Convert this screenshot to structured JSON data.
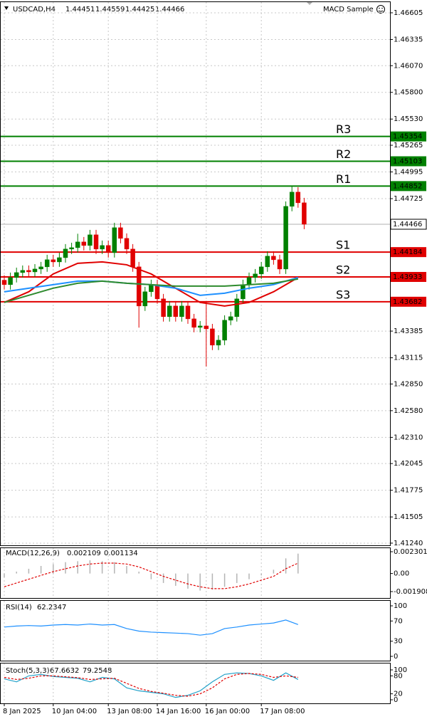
{
  "chart_data": [
    {
      "type": "candlestick",
      "title": "USDCAD,H4",
      "header_values": [
        1.44451,
        1.44559,
        1.44425,
        1.44466
      ],
      "indicator": "MACD Sample",
      "open": [
        1.439,
        1.43855,
        1.43927,
        1.43977,
        1.43999,
        1.43984,
        1.44013,
        1.44035,
        1.44107,
        1.44085,
        1.44128,
        1.44215,
        1.44229,
        1.44287,
        1.44251,
        1.44359,
        1.44215,
        1.44251,
        1.44179,
        1.44431,
        1.44323,
        1.44215,
        1.44035,
        1.43639,
        1.43783,
        1.43855,
        1.43711,
        1.43531,
        1.43639,
        1.43531,
        1.43639,
        1.43509,
        1.43423,
        1.43437,
        1.43408,
        1.43243,
        1.43293,
        1.43495,
        1.43531,
        1.43711,
        1.43855,
        1.43927,
        1.43963,
        1.44035,
        1.44143,
        1.44107,
        1.44013,
        1.44647,
        1.44791,
        1.44683
      ],
      "high": [
        1.4395,
        1.43977,
        1.44027,
        1.44049,
        1.44049,
        1.44063,
        1.44085,
        1.44157,
        1.44157,
        1.44178,
        1.44265,
        1.44279,
        1.4437,
        1.44337,
        1.44409,
        1.44409,
        1.44301,
        1.44301,
        1.44481,
        1.44481,
        1.44373,
        1.44265,
        1.44085,
        1.43833,
        1.43905,
        1.43905,
        1.43761,
        1.43689,
        1.43689,
        1.43689,
        1.43689,
        1.43559,
        1.43487,
        1.4369,
        1.43458,
        1.43343,
        1.43545,
        1.43581,
        1.43761,
        1.43905,
        1.43977,
        1.44013,
        1.44085,
        1.44193,
        1.44193,
        1.44157,
        1.44697,
        1.44848,
        1.44841,
        1.44733
      ],
      "low": [
        1.43805,
        1.43805,
        1.43877,
        1.43927,
        1.43934,
        1.43934,
        1.43963,
        1.43985,
        1.44035,
        1.44035,
        1.44078,
        1.44165,
        1.44179,
        1.44201,
        1.44201,
        1.44165,
        1.44165,
        1.44129,
        1.44129,
        1.44273,
        1.44165,
        1.43985,
        1.4342,
        1.43589,
        1.43733,
        1.43661,
        1.43481,
        1.43481,
        1.43481,
        1.43481,
        1.43459,
        1.43373,
        1.43373,
        1.43027,
        1.43193,
        1.43193,
        1.43243,
        1.43445,
        1.43481,
        1.43661,
        1.43805,
        1.43877,
        1.43913,
        1.43985,
        1.44057,
        1.43963,
        1.43963,
        1.44597,
        1.44633,
        1.44416
      ],
      "close": [
        1.43855,
        1.43927,
        1.43977,
        1.43999,
        1.43984,
        1.44013,
        1.44035,
        1.44107,
        1.44085,
        1.44128,
        1.44215,
        1.44229,
        1.44287,
        1.44251,
        1.44359,
        1.44215,
        1.44251,
        1.44179,
        1.44431,
        1.44323,
        1.44215,
        1.44035,
        1.43639,
        1.43783,
        1.43855,
        1.43711,
        1.43531,
        1.43639,
        1.43531,
        1.43639,
        1.43509,
        1.43423,
        1.43437,
        1.43408,
        1.43243,
        1.43293,
        1.43495,
        1.43531,
        1.43711,
        1.43855,
        1.43927,
        1.43963,
        1.44035,
        1.44143,
        1.44107,
        1.44013,
        1.44647,
        1.44791,
        1.44683,
        1.44466
      ],
      "up_color": "#008000",
      "down_color": "#e00000",
      "ma": [
        {
          "color": "#e00000",
          "x": [
            0,
            4,
            8,
            12,
            16,
            20,
            24,
            28,
            32,
            36,
            40,
            44,
            48
          ],
          "values": [
            1.43675,
            1.43783,
            1.43963,
            1.44071,
            1.44085,
            1.44056,
            1.43963,
            1.43819,
            1.43675,
            1.43639,
            1.43675,
            1.43783,
            1.43927
          ]
        },
        {
          "color": "#1e90ff",
          "x": [
            0,
            4,
            8,
            12,
            16,
            20,
            24,
            28,
            32,
            36,
            40,
            44,
            48
          ],
          "values": [
            1.43783,
            1.43819,
            1.43855,
            1.43891,
            1.43891,
            1.43869,
            1.43855,
            1.43819,
            1.43747,
            1.43768,
            1.43819,
            1.43855,
            1.43927
          ]
        },
        {
          "color": "#2e8b2e",
          "x": [
            0,
            4,
            8,
            12,
            16,
            20,
            24,
            28,
            32,
            36,
            40,
            44,
            48
          ],
          "values": [
            1.43675,
            1.43747,
            1.43819,
            1.43869,
            1.43891,
            1.43869,
            1.43855,
            1.4384,
            1.4384,
            1.4384,
            1.43855,
            1.43869,
            1.43912
          ]
        }
      ],
      "levels": [
        {
          "name": "R3",
          "value": 1.45354,
          "color": "#008000"
        },
        {
          "name": "R2",
          "value": 1.45103,
          "color": "#008000"
        },
        {
          "name": "R1",
          "value": 1.44852,
          "color": "#008000"
        },
        {
          "name": "S1",
          "value": 1.44184,
          "color": "#e00000"
        },
        {
          "name": "S2",
          "value": 1.43933,
          "color": "#e00000"
        },
        {
          "name": "S3",
          "value": 1.43682,
          "color": "#e00000"
        }
      ],
      "last_price": 1.44466,
      "ylim": [
        1.41218,
        1.4672
      ],
      "yticks": [
        1.46605,
        1.46335,
        {
          "value": 1.4607,
          "label": "1.46070"
        },
        {
          "value": 1.458,
          "label": "1.45800"
        },
        {
          "value": 1.4553,
          "label": "1.45530"
        },
        1.45265,
        1.44995,
        1.44725,
        1.43385,
        1.43115,
        {
          "value": 1.4285,
          "label": "1.42850"
        },
        {
          "value": 1.4258,
          "label": "1.42580"
        },
        {
          "value": 1.4231,
          "label": "1.42310"
        },
        1.42045,
        1.41775,
        1.41505,
        {
          "value": 1.4124,
          "label": "1.41240"
        }
      ],
      "xticks": [
        {
          "value": 0,
          "label": "8 Jan 2025"
        },
        {
          "value": 8,
          "label": "10 Jan 04:00"
        },
        {
          "value": 17,
          "label": "13 Jan 08:00"
        },
        {
          "value": 25,
          "label": "14 Jan 16:00"
        },
        {
          "value": 33,
          "label": "16 Jan 00:00"
        },
        {
          "value": 42,
          "label": "17 Jan 08:00"
        }
      ],
      "grid": true
    },
    {
      "type": "macd",
      "title": "MACD(12,26,9)",
      "header_values": [
        0.002109,
        0.001134
      ],
      "x": [
        0,
        2,
        4,
        6,
        8,
        10,
        12,
        14,
        16,
        18,
        20,
        22,
        24,
        26,
        28,
        30,
        32,
        34,
        36,
        38,
        40,
        42,
        44,
        46,
        48
      ],
      "series": [
        {
          "color": "#b4b4b4",
          "style": "histogram",
          "values": [
            -0.0004,
            0.0002,
            0.0005,
            0.0008,
            0.001,
            0.0012,
            0.0013,
            0.0014,
            0.0013,
            0.0012,
            0.0008,
            0.0002,
            -0.0006,
            -0.001,
            -0.0013,
            -0.0016,
            -0.0018,
            -0.0017,
            -0.0014,
            -0.001,
            -0.0006,
            -0.0002,
            0.0004,
            0.0016,
            0.0021
          ]
        },
        {
          "color": "#e00000",
          "style": "dashed",
          "values": [
            -0.0014,
            -0.001,
            -0.0006,
            -0.0002,
            0.0002,
            0.0005,
            0.0008,
            0.001,
            0.0011,
            0.0011,
            0.001,
            0.0007,
            0.0002,
            -0.0003,
            -0.0007,
            -0.0011,
            -0.0014,
            -0.0016,
            -0.0016,
            -0.0014,
            -0.0011,
            -0.0007,
            -0.0003,
            0.0005,
            0.0011
          ]
        }
      ],
      "ylim": [
        -0.002584,
        0.002752
      ],
      "yticks": [
        0.002301,
        {
          "value": 0,
          "label": "0.00"
        },
        -0.001908
      ],
      "grid": false
    },
    {
      "type": "line",
      "title": "RSI(14)",
      "header_values": [
        62.2347
      ],
      "x": [
        0,
        2,
        4,
        6,
        8,
        10,
        12,
        14,
        16,
        18,
        20,
        22,
        24,
        26,
        28,
        30,
        32,
        34,
        36,
        38,
        40,
        42,
        44,
        46,
        48
      ],
      "series": [
        {
          "color": "#1e90ff",
          "style": "solid",
          "values": [
            58,
            60,
            61,
            60,
            62,
            63,
            62,
            64,
            62,
            63,
            55,
            50,
            48,
            47,
            46,
            45,
            42,
            45,
            55,
            58,
            62,
            64,
            66,
            72,
            63
          ]
        }
      ],
      "ylim": [
        -8.5,
        111.3
      ],
      "yticks": [
        100,
        70,
        30,
        0
      ],
      "grid": false
    },
    {
      "type": "line",
      "title": "Stoch(5,3,3)",
      "header_values": [
        67.6632,
        79.2548
      ],
      "x": [
        0,
        2,
        4,
        6,
        8,
        10,
        12,
        14,
        16,
        18,
        20,
        22,
        24,
        26,
        28,
        30,
        32,
        34,
        36,
        38,
        40,
        42,
        44,
        46,
        48
      ],
      "series": [
        {
          "color": "#20a0c8",
          "style": "solid",
          "values": [
            70,
            60,
            80,
            85,
            78,
            75,
            72,
            60,
            75,
            70,
            40,
            30,
            25,
            20,
            8,
            15,
            30,
            60,
            85,
            90,
            88,
            80,
            65,
            90,
            68
          ]
        },
        {
          "color": "#e00000",
          "style": "dashed",
          "values": [
            75,
            68,
            72,
            80,
            80,
            77,
            74,
            68,
            70,
            72,
            55,
            38,
            28,
            22,
            15,
            12,
            20,
            40,
            70,
            85,
            88,
            85,
            75,
            80,
            75
          ]
        }
      ],
      "ylim": [
        -11.9,
        123.8
      ],
      "yticks": [
        100,
        80,
        20,
        0
      ],
      "grid": false
    }
  ]
}
